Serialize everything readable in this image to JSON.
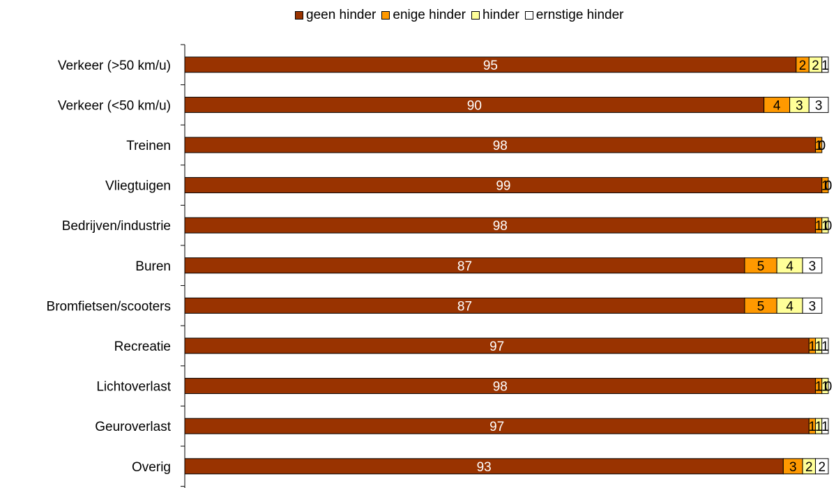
{
  "chart_data": {
    "type": "bar",
    "orientation": "horizontal",
    "stacked": true,
    "categories": [
      "Verkeer (>50 km/u)",
      "Verkeer (<50 km/u)",
      "Treinen",
      "Vliegtuigen",
      "Bedrijven/industrie",
      "Buren",
      "Bromfietsen/scooters",
      "Recreatie",
      "Lichtoverlast",
      "Geuroverlast",
      "Overig"
    ],
    "series": [
      {
        "name": "geen hinder",
        "color": "#993300",
        "label_color": "#ffffff",
        "values": [
          95,
          90,
          98,
          99,
          98,
          87,
          87,
          97,
          98,
          97,
          93
        ]
      },
      {
        "name": "enige hinder",
        "color": "#ff9900",
        "label_color": "#000000",
        "values": [
          2,
          4,
          1,
          1,
          1,
          5,
          5,
          1,
          1,
          1,
          3
        ]
      },
      {
        "name": "hinder",
        "color": "#ffff99",
        "label_color": "#000000",
        "values": [
          2,
          3,
          0,
          0,
          1,
          4,
          4,
          1,
          1,
          1,
          2
        ]
      },
      {
        "name": "ernstige hinder",
        "color": "#ffffff",
        "label_color": "#000000",
        "values": [
          1,
          3,
          0,
          0,
          0,
          3,
          3,
          1,
          0,
          1,
          2
        ]
      }
    ],
    "legend_position": "top",
    "grid": false
  }
}
